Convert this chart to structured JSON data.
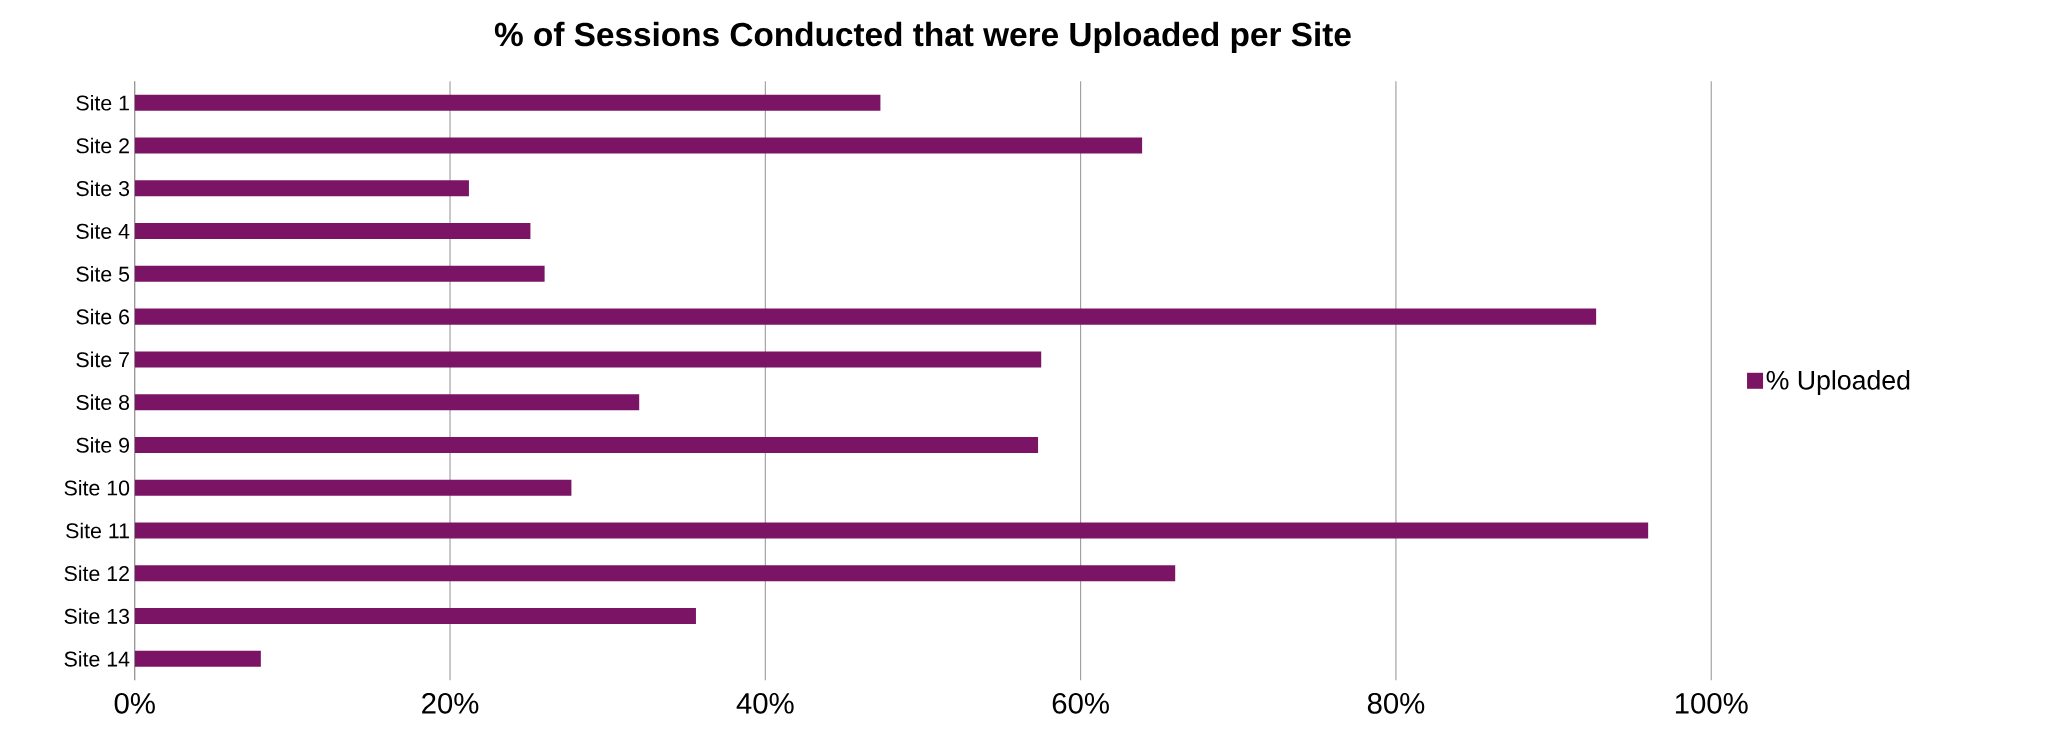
{
  "chart_data": {
    "type": "bar",
    "orientation": "horizontal",
    "title": "% of Sessions Conducted that were Uploaded per Site",
    "categories": [
      "Site 1",
      "Site 2",
      "Site 3",
      "Site 4",
      "Site 5",
      "Site 6",
      "Site 7",
      "Site 8",
      "Site 9",
      "Site 10",
      "Site 11",
      "Site 12",
      "Site 13",
      "Site 14"
    ],
    "series": [
      {
        "name": "% Uploaded",
        "color": "#7b1464",
        "values": [
          47.3,
          63.9,
          21.2,
          25.1,
          26.0,
          92.7,
          57.5,
          32.0,
          57.3,
          27.7,
          96.0,
          66.0,
          35.6,
          8.0
        ]
      }
    ],
    "xlim": [
      0,
      100
    ],
    "xticks": [
      {
        "value": 0,
        "label": "0%"
      },
      {
        "value": 20,
        "label": "20%"
      },
      {
        "value": 40,
        "label": "40%"
      },
      {
        "value": 60,
        "label": "60%"
      },
      {
        "value": 80,
        "label": "80%"
      },
      {
        "value": 100,
        "label": "100%"
      }
    ],
    "grid": "x",
    "legend": "right"
  }
}
